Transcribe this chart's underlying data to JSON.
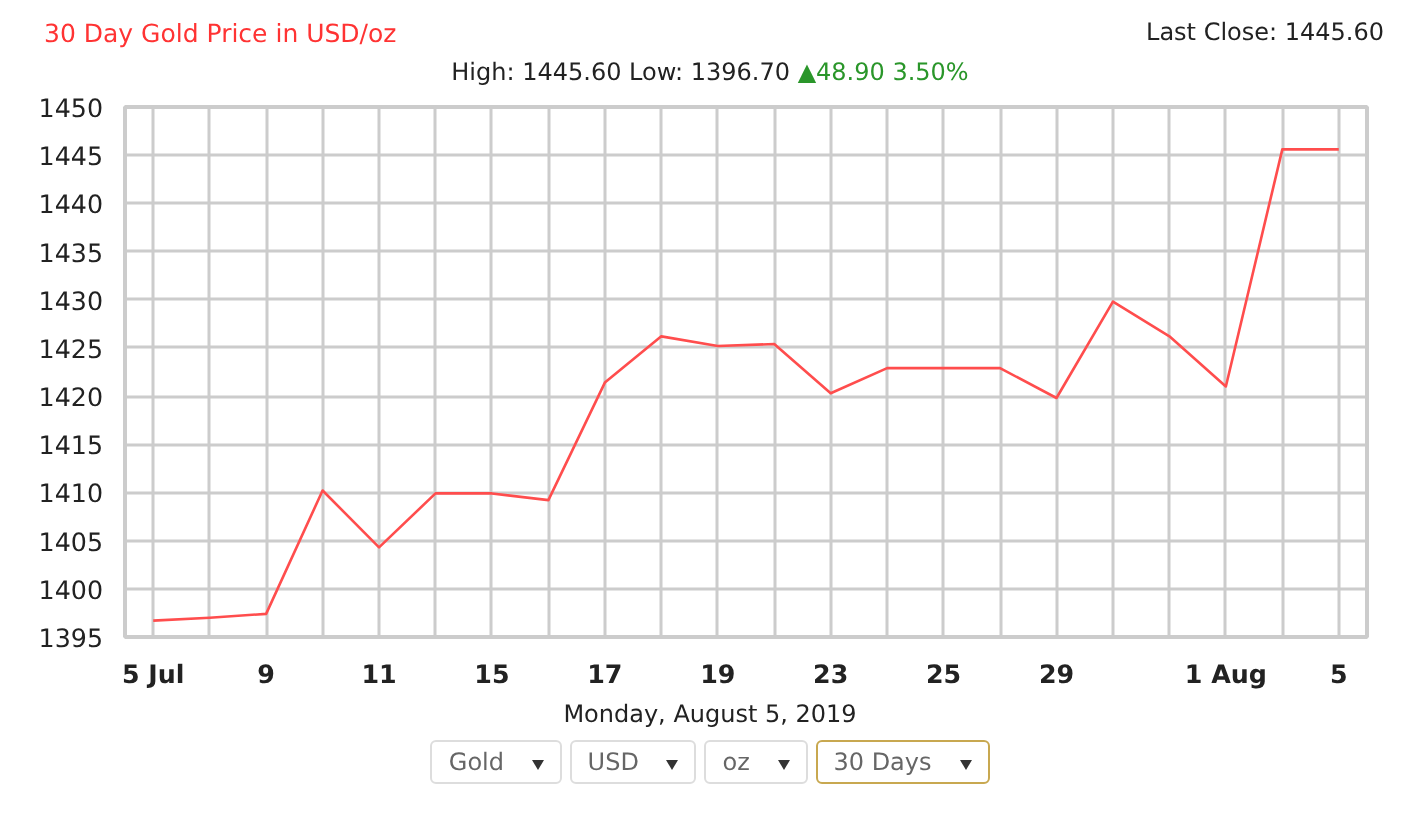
{
  "chart_data": {
    "type": "line",
    "title": "30 Day Gold Price in USD/oz",
    "subtitle": "High: 1445.60 Low: 1396.70",
    "annotations": [
      "Last Close: 1445.60",
      "▲48.90 3.50%",
      "Monday, August 5, 2019",
      "Gold",
      "USD",
      "oz",
      "30 Days"
    ],
    "categories": [
      "5 Jul",
      null,
      "9",
      null,
      "11",
      null,
      "15",
      null,
      "17",
      null,
      "19",
      null,
      "23",
      null,
      "25",
      null,
      "29",
      null,
      null,
      "1 Aug",
      null,
      "5"
    ],
    "series": [
      {
        "color": "#ff4d4d",
        "values": [
          1396.7,
          1397.0,
          1397.4,
          1410.2,
          1404.3,
          1409.9,
          1409.9,
          1409.2,
          1421.4,
          1426.2,
          1425.2,
          1425.4,
          1420.3,
          1422.9,
          1422.9,
          1422.9,
          1419.8,
          1429.8,
          1426.2,
          1421.0,
          1445.6,
          1445.6
        ]
      }
    ],
    "ylim": [
      1395,
      1450
    ],
    "yticks": [
      1395,
      1400,
      1405,
      1410,
      1415,
      1420,
      1425,
      1430,
      1435,
      1440,
      1445,
      1450
    ],
    "grid": true,
    "marker": "none",
    "line_style": "solid"
  }
}
